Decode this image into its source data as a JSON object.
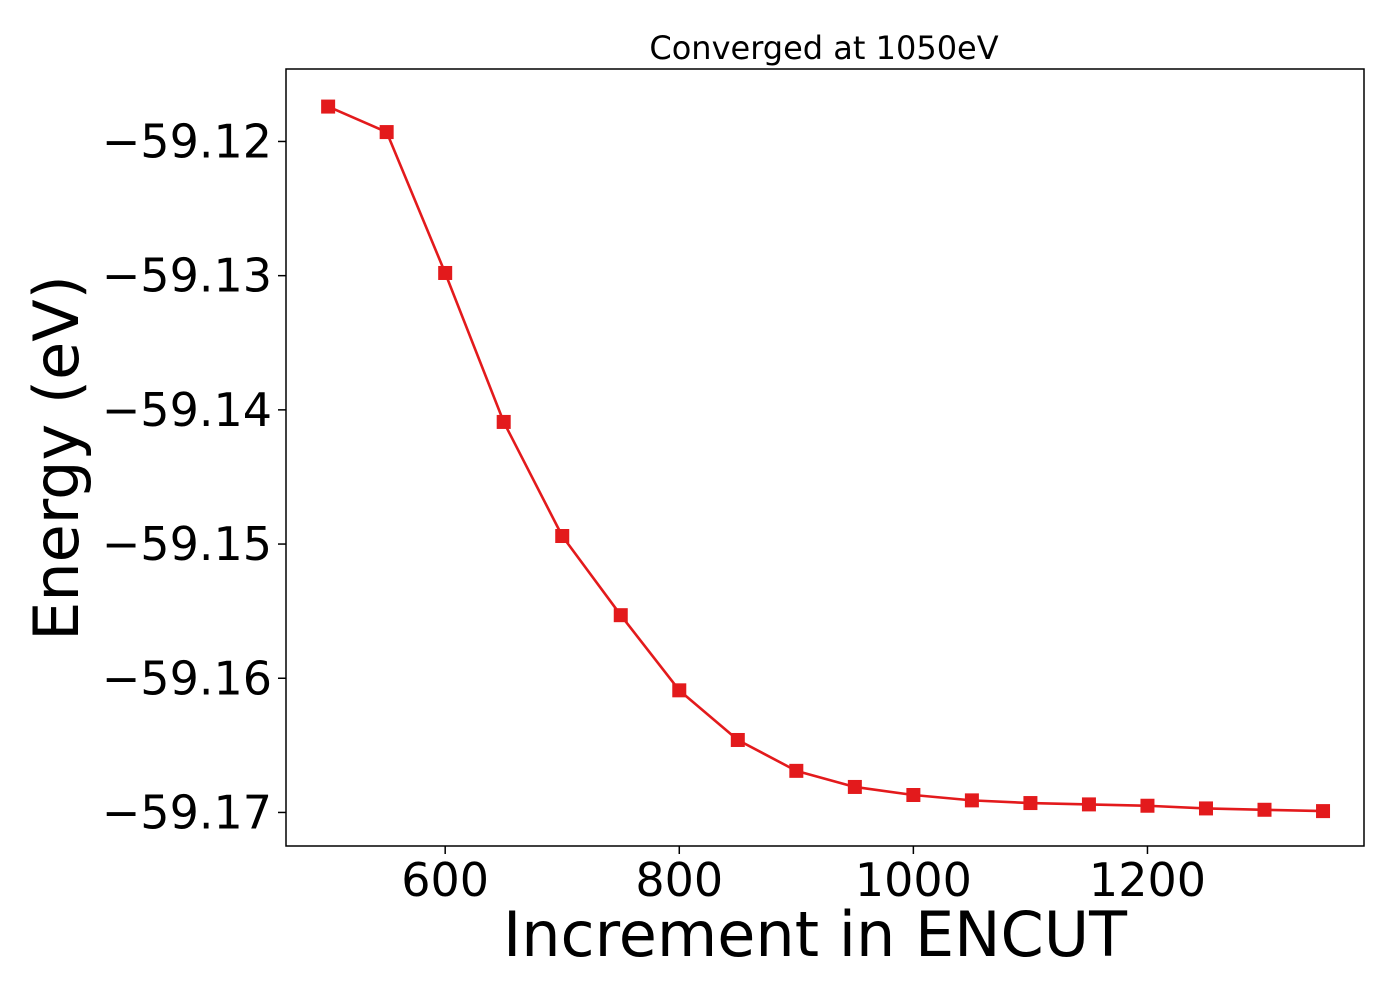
{
  "chart_data": {
    "type": "line",
    "title": "Converged at 1050eV",
    "xlabel": "Increment in ENCUT",
    "ylabel": "Energy (eV)",
    "xlim": [
      464,
      1385
    ],
    "ylim": [
      -59.1725,
      -59.1146
    ],
    "xticks": [
      600,
      800,
      1000,
      1200
    ],
    "xtick_labels": [
      "600",
      "800",
      "1000",
      "1200"
    ],
    "yticks": [
      -59.12,
      -59.13,
      -59.14,
      -59.15,
      -59.16,
      -59.17
    ],
    "ytick_labels": [
      "−59.12",
      "−59.13",
      "−59.14",
      "−59.15",
      "−59.16",
      "−59.17"
    ],
    "grid": false,
    "legend": "none",
    "marker": "square",
    "color": "#e31a1c",
    "series": [
      {
        "x": [
          500,
          550,
          600,
          650,
          700,
          750,
          800,
          850,
          900,
          950,
          1000,
          1050,
          1100,
          1150,
          1200,
          1250,
          1300,
          1350
        ],
        "y": [
          -59.1174,
          -59.1193,
          -59.1298,
          -59.1409,
          -59.1494,
          -59.1553,
          -59.1609,
          -59.1646,
          -59.1669,
          -59.1681,
          -59.1687,
          -59.1691,
          -59.1693,
          -59.1694,
          -59.1695,
          -59.1697,
          -59.1698,
          -59.1699
        ]
      }
    ]
  }
}
